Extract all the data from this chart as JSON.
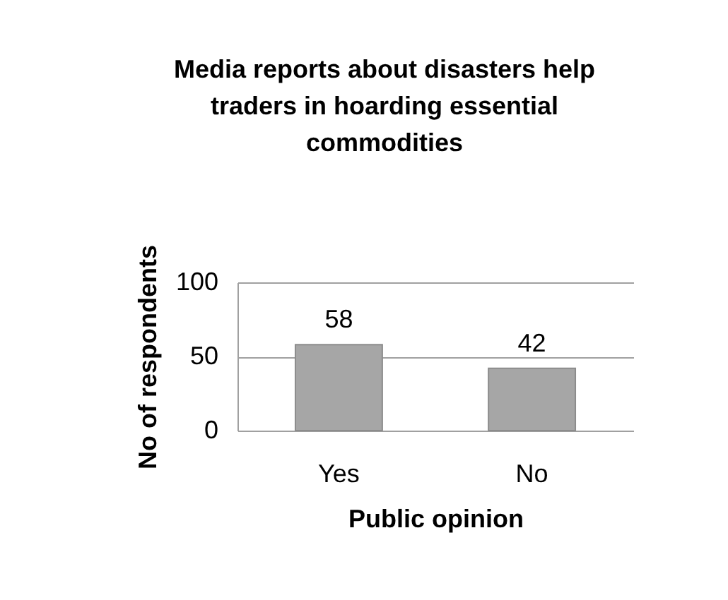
{
  "chart_data": {
    "type": "bar",
    "title": "Media reports about disasters help traders  in hoarding essential commodities",
    "xlabel": "Public opinion",
    "ylabel": "No of respondents",
    "categories": [
      "Yes",
      "No"
    ],
    "values": [
      58,
      42
    ],
    "color": "#a6a6a6",
    "ylim": [
      0,
      100
    ],
    "yticks": [
      0,
      50,
      100
    ],
    "grid": "y",
    "data_labels": true
  }
}
